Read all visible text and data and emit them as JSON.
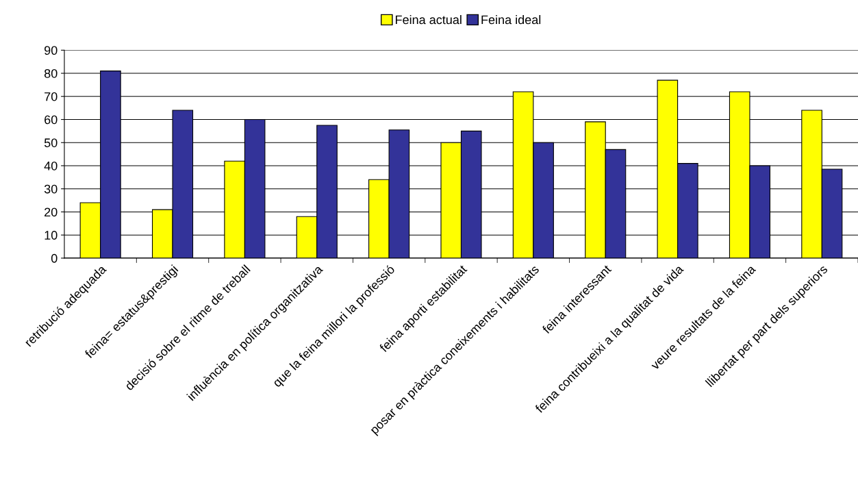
{
  "chart_data": {
    "type": "bar",
    "categories": [
      "retribució adequada",
      "feina= estatus&prestigi",
      "decisió sobre el ritme de treball",
      "influència en política organitzativa",
      "que la feina millori la professió",
      "feina aporti estabilitat",
      "posar en pràctica coneixements i habilitats",
      "feina interessant",
      "feina contribueixi a la qualitat de vida",
      "veure resultats de la feina",
      "llibertat per part dels superiors"
    ],
    "series": [
      {
        "name": "Feina actual",
        "color": "#ffff00",
        "values": [
          24,
          21,
          42,
          18,
          34,
          50,
          72,
          59,
          77,
          72,
          64
        ]
      },
      {
        "name": "Feina ideal",
        "color": "#333399",
        "values": [
          81,
          64,
          60,
          57.5,
          55.5,
          55,
          50,
          47,
          41,
          40,
          38.5
        ]
      }
    ],
    "ylim": [
      0,
      90
    ],
    "yticks": [
      0,
      10,
      20,
      30,
      40,
      50,
      60,
      70,
      80,
      90
    ],
    "grid": "y",
    "legend": "top"
  }
}
